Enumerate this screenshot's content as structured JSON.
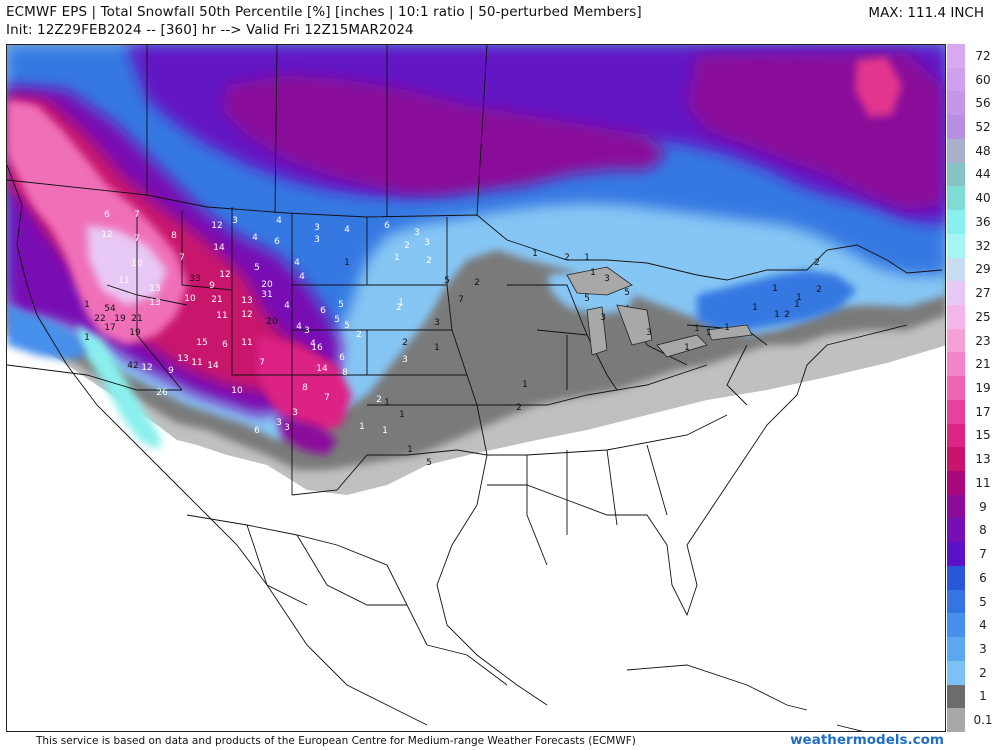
{
  "header": {
    "title": "ECMWF EPS | Total Snowfall 50th Percentile [%] [inches | 10:1 ratio | 50-perturbed Members]",
    "subtitle": "Init: 12Z29FEB2024 -- [360] hr --> Valid Fri 12Z15MAR2024",
    "max_label": "MAX: 111.4 INCH"
  },
  "legend": {
    "labels": [
      "72",
      "60",
      "56",
      "52",
      "48",
      "44",
      "40",
      "36",
      "32",
      "29",
      "27",
      "25",
      "23",
      "21",
      "19",
      "17",
      "15",
      "13",
      "11",
      "9",
      "8",
      "7",
      "6",
      "5",
      "4",
      "3",
      "2",
      "1",
      "0.1"
    ],
    "colors": [
      "#d8a8f0",
      "#cfa0ee",
      "#c496e8",
      "#b88ee0",
      "#aab0cc",
      "#86c4c4",
      "#7fdcd4",
      "#8af0ee",
      "#a4f6f4",
      "#c8dcf2",
      "#e8c8f4",
      "#f2b6e8",
      "#f6a0d8",
      "#f484c8",
      "#f064b4",
      "#e8409c",
      "#dc2484",
      "#c8146c",
      "#a8087c",
      "#8c0c9c",
      "#7410b4",
      "#5c10c8",
      "#2858d8",
      "#3474e4",
      "#4690ec",
      "#5aa8f0",
      "#7cc0f4",
      "#6c6c6c",
      "#a8a8a8"
    ]
  },
  "map": {
    "point_labels_white": [
      "6",
      "12",
      "7",
      "7",
      "8",
      "10",
      "11",
      "7",
      "12",
      "14",
      "12",
      "13",
      "13",
      "9",
      "10",
      "21",
      "11",
      "13",
      "12",
      "31",
      "20",
      "4",
      "6",
      "4",
      "3",
      "3",
      "3",
      "4",
      "6",
      "3",
      "3",
      "2",
      "1",
      "2",
      "4",
      "4",
      "5",
      "4",
      "6",
      "5",
      "5",
      "3",
      "4",
      "11",
      "6",
      "15",
      "13",
      "9",
      "11",
      "14",
      "16",
      "14",
      "6",
      "8",
      "7",
      "8",
      "7",
      "6",
      "3",
      "1",
      "1",
      "3",
      "3",
      "10",
      "12",
      "26",
      "4",
      "5",
      "2",
      "2",
      "1",
      "3",
      "2"
    ],
    "point_labels_black": [
      "1",
      "54",
      "22",
      "17",
      "19",
      "21",
      "19",
      "42",
      "33",
      "20",
      "1",
      "1",
      "2",
      "1",
      "2",
      "1",
      "1",
      "3",
      "5",
      "5",
      "3",
      "3",
      "1",
      "1",
      "1",
      "1",
      "1",
      "2",
      "1",
      "2",
      "1",
      "2",
      "1",
      "1",
      "2",
      "2",
      "3",
      "7",
      "5",
      "1",
      "1",
      "1",
      "1",
      "5",
      "1"
    ]
  },
  "footer": {
    "credit": "This service is based on data and products of the European Centre for Medium-range Weather Forecasts (ECMWF)",
    "brand": "weathermodels.com"
  }
}
